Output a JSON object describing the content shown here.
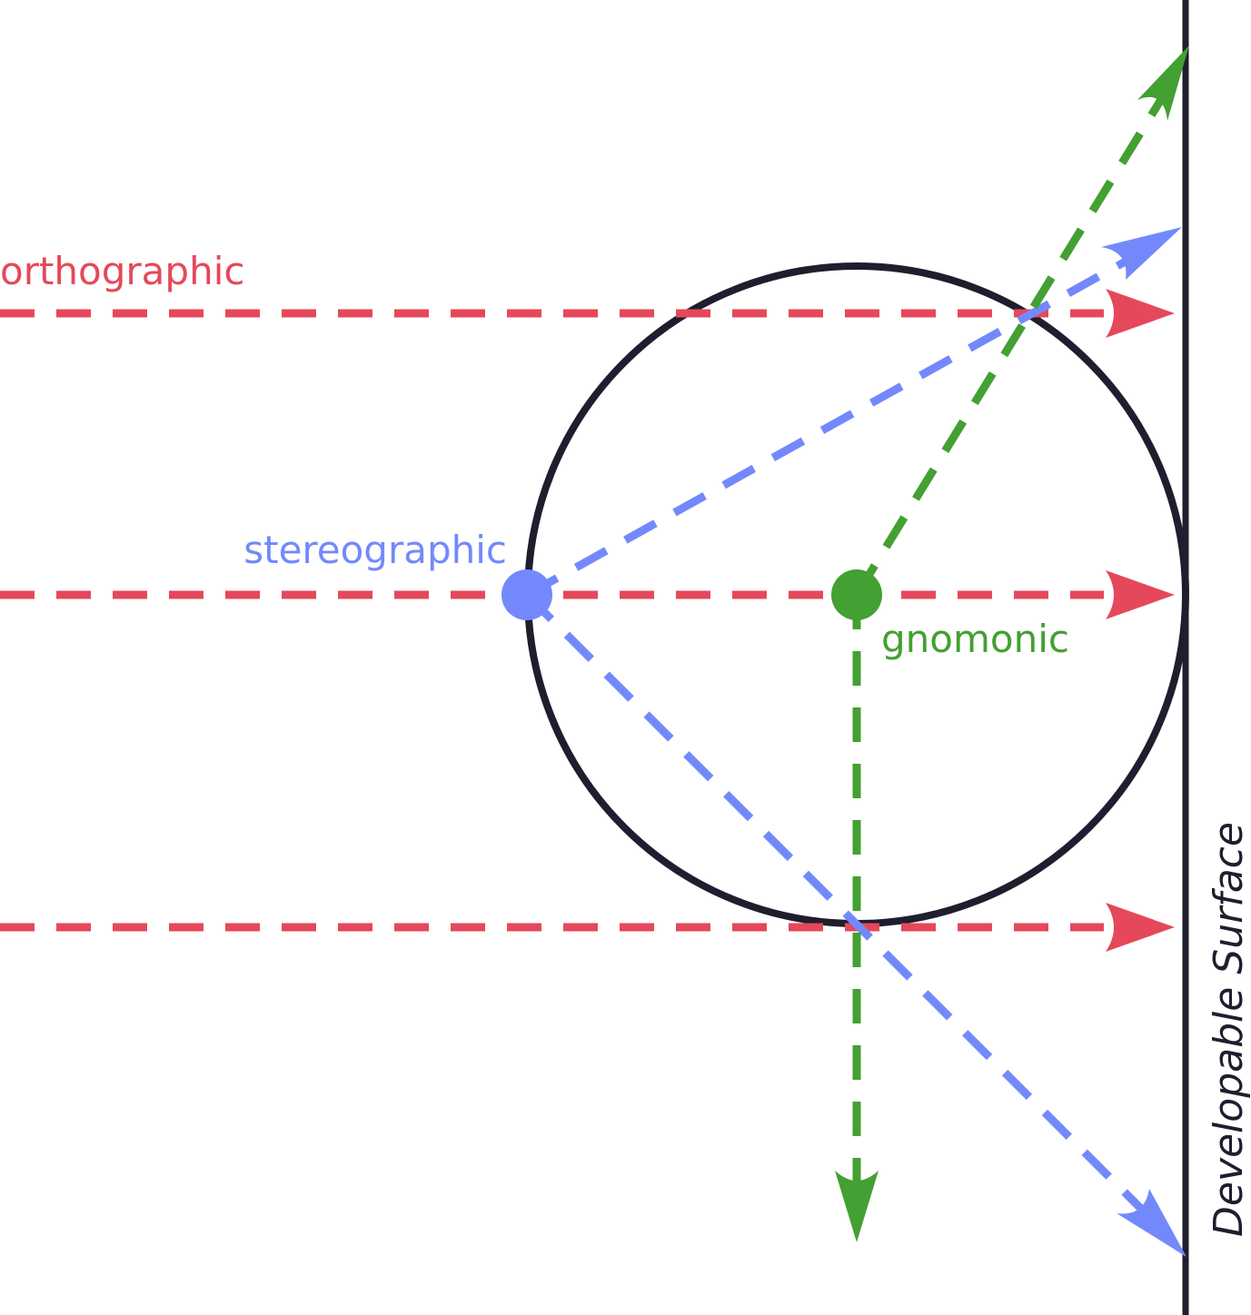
{
  "labels": {
    "orthographic": "orthographic",
    "stereographic": "stereographic",
    "gnomonic": "gnomonic",
    "surface": "Developable Surface"
  },
  "colors": {
    "orthographic": "#e5485a",
    "stereographic": "#7389fb",
    "gnomonic": "#43a032",
    "outline": "#1e1e2e"
  }
}
